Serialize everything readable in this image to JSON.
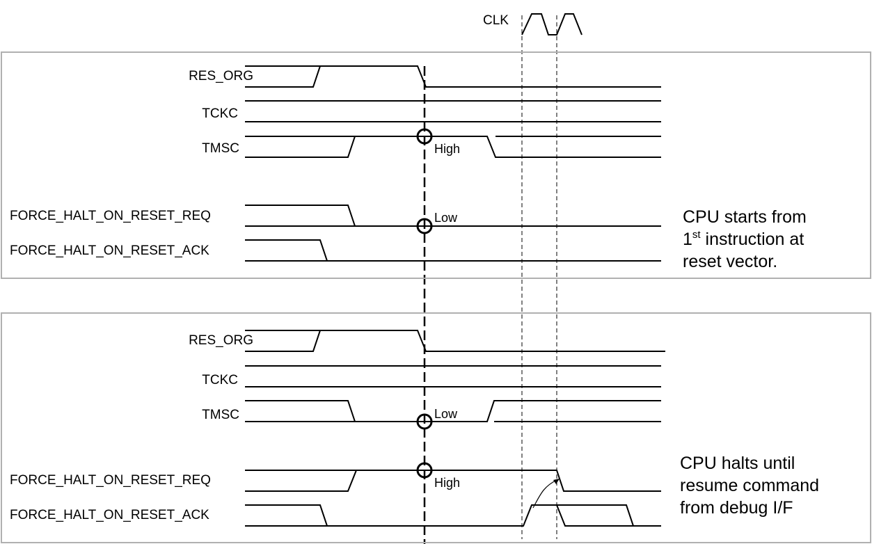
{
  "clock": {
    "label": "CLK"
  },
  "panel_top": {
    "signals": [
      "RES_ORG",
      "TCKC",
      "TMSC",
      "FORCE_HALT_ON_RESET_REQ",
      "FORCE_HALT_ON_RESET_ACK"
    ],
    "marker_labels": {
      "tmsc": "High",
      "req": "Low"
    },
    "note": {
      "line1_pre": "CPU starts from",
      "line2_number": "1",
      "line2_sup": "st",
      "line2_rest": " instruction at",
      "line3": "reset vector."
    }
  },
  "panel_bottom": {
    "signals": [
      "RES_ORG",
      "TCKC",
      "TMSC",
      "FORCE_HALT_ON_RESET_REQ",
      "FORCE_HALT_ON_RESET_ACK"
    ],
    "marker_labels": {
      "tmsc": "Low",
      "req": "High"
    },
    "note": {
      "line1": "CPU halts until",
      "line2": "resume command",
      "line3": "from debug I/F"
    }
  }
}
